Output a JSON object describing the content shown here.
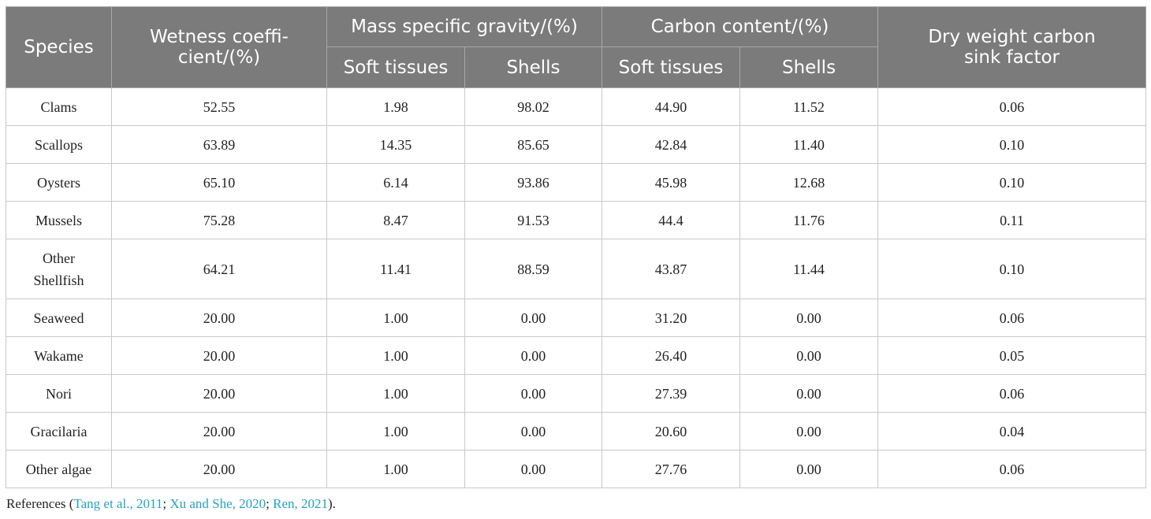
{
  "table": {
    "headers": {
      "species": "Species",
      "wetness": "Wetness coeffi-cient/(%)",
      "mass_gravity": "Mass specific gravity/(%)",
      "carbon_content": "Carbon content/(%)",
      "dry_weight": "Dry weight carbon sink factor",
      "mass_soft": "Soft tissues",
      "mass_shells": "Shells",
      "carbon_soft": "Soft tissues",
      "carbon_shells": "Shells"
    },
    "rows": [
      {
        "species": "Clams",
        "wetness": "52.55",
        "mass_soft": "1.98",
        "mass_shells": "98.02",
        "carbon_soft": "44.90",
        "carbon_shells": "11.52",
        "dry_weight": "0.06"
      },
      {
        "species": "Scallops",
        "wetness": "63.89",
        "mass_soft": "14.35",
        "mass_shells": "85.65",
        "carbon_soft": "42.84",
        "carbon_shells": "11.40",
        "dry_weight": "0.10"
      },
      {
        "species": "Oysters",
        "wetness": "65.10",
        "mass_soft": "6.14",
        "mass_shells": "93.86",
        "carbon_soft": "45.98",
        "carbon_shells": "12.68",
        "dry_weight": "0.10"
      },
      {
        "species": "Mussels",
        "wetness": "75.28",
        "mass_soft": "8.47",
        "mass_shells": "91.53",
        "carbon_soft": "44.4",
        "carbon_shells": "11.76",
        "dry_weight": "0.11"
      },
      {
        "species": "Other Shellfish",
        "wetness": "64.21",
        "mass_soft": "11.41",
        "mass_shells": "88.59",
        "carbon_soft": "43.87",
        "carbon_shells": "11.44",
        "dry_weight": "0.10"
      },
      {
        "species": "Seaweed",
        "wetness": "20.00",
        "mass_soft": "1.00",
        "mass_shells": "0.00",
        "carbon_soft": "31.20",
        "carbon_shells": "0.00",
        "dry_weight": "0.06"
      },
      {
        "species": "Wakame",
        "wetness": "20.00",
        "mass_soft": "1.00",
        "mass_shells": "0.00",
        "carbon_soft": "26.40",
        "carbon_shells": "0.00",
        "dry_weight": "0.05"
      },
      {
        "species": "Nori",
        "wetness": "20.00",
        "mass_soft": "1.00",
        "mass_shells": "0.00",
        "carbon_soft": "27.39",
        "carbon_shells": "0.00",
        "dry_weight": "0.06"
      },
      {
        "species": "Gracilaria",
        "wetness": "20.00",
        "mass_soft": "1.00",
        "mass_shells": "0.00",
        "carbon_soft": "20.60",
        "carbon_shells": "0.00",
        "dry_weight": "0.04"
      },
      {
        "species": "Other algae",
        "wetness": "20.00",
        "mass_soft": "1.00",
        "mass_shells": "0.00",
        "carbon_soft": "27.76",
        "carbon_shells": "0.00",
        "dry_weight": "0.06"
      }
    ]
  },
  "references": {
    "prefix": "References (",
    "cite1": "Tang et al., 2011",
    "sep1": "; ",
    "cite2": "Xu and She, 2020",
    "sep2": "; ",
    "cite3": "Ren, 2021",
    "suffix": ")."
  },
  "colors": {
    "header_bg": "#7b7b7b",
    "citation": "#1fa3c6"
  }
}
